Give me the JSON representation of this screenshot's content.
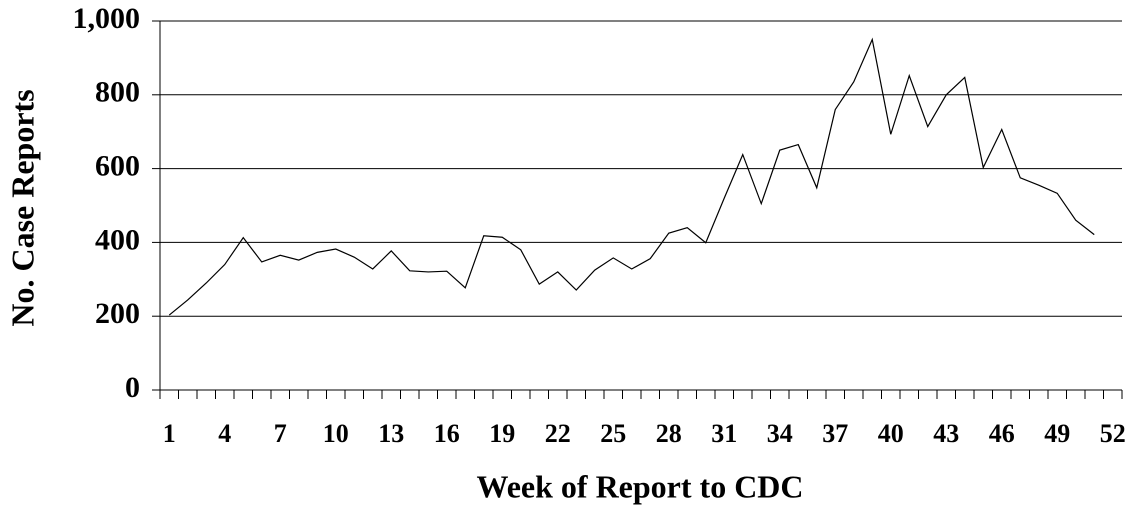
{
  "chart_data": {
    "type": "line",
    "x_label": "Week of Report to CDC",
    "y_label": "No. Case Reports",
    "categories": [
      "1",
      null,
      null,
      "4",
      null,
      null,
      "7",
      null,
      null,
      "10",
      null,
      null,
      "13",
      null,
      null,
      "16",
      null,
      null,
      "19",
      null,
      null,
      "22",
      null,
      null,
      "25",
      null,
      null,
      "28",
      null,
      null,
      "31",
      null,
      null,
      "34",
      null,
      null,
      "37",
      null,
      null,
      "40",
      null,
      null,
      "43",
      null,
      null,
      "46",
      null,
      null,
      "49",
      null,
      null,
      "52"
    ],
    "values": [
      203,
      244,
      290,
      340,
      413,
      347,
      365,
      352,
      373,
      382,
      360,
      328,
      377,
      323,
      320,
      322,
      277,
      418,
      414,
      380,
      287,
      320,
      271,
      325,
      358,
      328,
      356,
      425,
      440,
      399,
      520,
      638,
      505,
      650,
      665,
      548,
      760,
      835,
      950,
      693,
      852,
      714,
      800,
      847,
      603,
      706,
      575,
      555,
      533,
      460,
      421,
      null
    ],
    "color": "#000000",
    "ylim": [
      0,
      1000
    ],
    "yticks": [
      0,
      200,
      400,
      600,
      800,
      {
        "value": 1000,
        "label": "1,000"
      }
    ],
    "grid": true
  }
}
